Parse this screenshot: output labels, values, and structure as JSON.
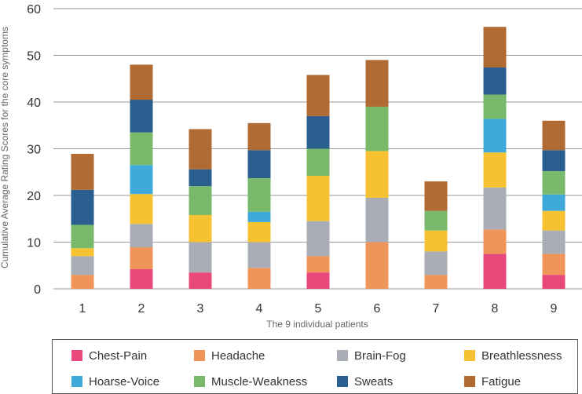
{
  "chart_data": {
    "type": "bar",
    "stacked": true,
    "categories": [
      "1",
      "2",
      "3",
      "4",
      "5",
      "6",
      "7",
      "8",
      "9"
    ],
    "xlabel": "The 9 individual patients",
    "ylabel": "Cumulative Average Rating Scores for the core symptoms",
    "ylim": [
      0,
      60
    ],
    "yticks": [
      "0",
      "10",
      "20",
      "30",
      "40",
      "50",
      "60"
    ],
    "grid": true,
    "legend_position": "bottom",
    "series": [
      {
        "name": "Chest-Pain",
        "color": "#e8497a",
        "values": [
          0,
          4.2,
          3.5,
          0,
          3.5,
          0,
          0,
          7.5,
          3
        ]
      },
      {
        "name": "Headache",
        "color": "#ef955a",
        "values": [
          3,
          4.7,
          0,
          4.5,
          3.5,
          10,
          3,
          5.2,
          4.5
        ]
      },
      {
        "name": "Brain-Fog",
        "color": "#a9adb6",
        "values": [
          4,
          5,
          6.5,
          5.5,
          7.5,
          9.5,
          5,
          9,
          5
        ]
      },
      {
        "name": "Breathlessness",
        "color": "#f6c232",
        "values": [
          1.7,
          6.4,
          5.8,
          4.3,
          9.7,
          10,
          4.5,
          7.5,
          4.2
        ]
      },
      {
        "name": "Hoarse-Voice",
        "color": "#3fa9db",
        "values": [
          0,
          6.2,
          0,
          2.2,
          0,
          0,
          0,
          7.2,
          3.5
        ]
      },
      {
        "name": "Muscle-Weakness",
        "color": "#79b96c",
        "values": [
          5,
          7,
          6.2,
          7.2,
          5.8,
          9.5,
          4.2,
          5.2,
          5
        ]
      },
      {
        "name": "Sweats",
        "color": "#2a5f8f",
        "values": [
          7.5,
          7,
          3.6,
          6,
          7,
          0,
          0,
          5.8,
          4.5
        ]
      },
      {
        "name": "Fatigue",
        "color": "#b06a32",
        "values": [
          7.7,
          7.5,
          8.6,
          5.8,
          8.8,
          10,
          6.3,
          8.7,
          6.3
        ]
      }
    ]
  }
}
